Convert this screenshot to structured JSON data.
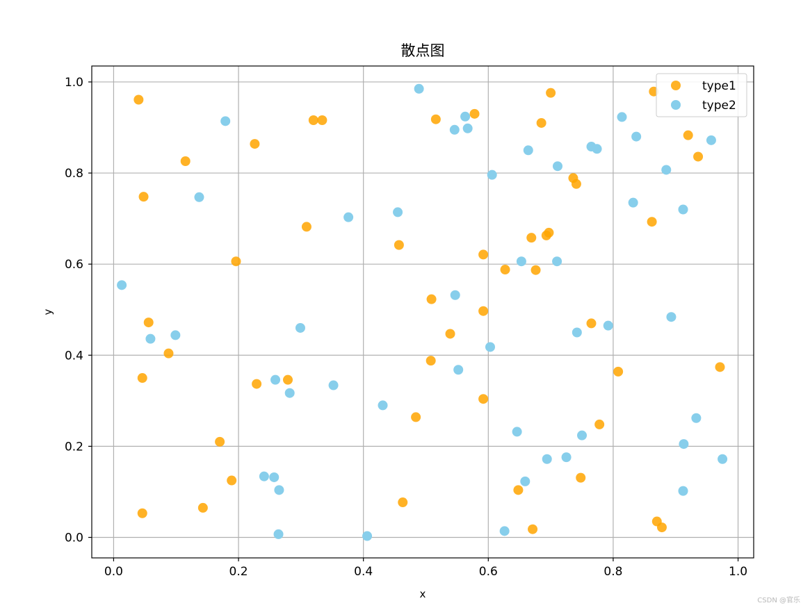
{
  "watermark": "CSDN @官乐",
  "chart_data": {
    "type": "scatter",
    "title": "散点图",
    "xlabel": "x",
    "ylabel": "y",
    "xlim": [
      -0.035,
      1.025
    ],
    "ylim": [
      -0.045,
      1.035
    ],
    "xticks": [
      0.0,
      0.2,
      0.4,
      0.6,
      0.8,
      1.0
    ],
    "yticks": [
      0.0,
      0.2,
      0.4,
      0.6,
      0.8,
      1.0
    ],
    "xtick_labels": [
      "0.0",
      "0.2",
      "0.4",
      "0.6",
      "0.8",
      "1.0"
    ],
    "ytick_labels": [
      "0.0",
      "0.2",
      "0.4",
      "0.6",
      "0.8",
      "1.0"
    ],
    "grid": true,
    "legend_position": "top-right",
    "series": [
      {
        "name": "type1",
        "color": "#FFA500",
        "points": [
          [
            0.04,
            0.961
          ],
          [
            0.048,
            0.748
          ],
          [
            0.056,
            0.472
          ],
          [
            0.088,
            0.404
          ],
          [
            0.046,
            0.35
          ],
          [
            0.046,
            0.053
          ],
          [
            0.115,
            0.826
          ],
          [
            0.143,
            0.065
          ],
          [
            0.17,
            0.21
          ],
          [
            0.189,
            0.125
          ],
          [
            0.196,
            0.606
          ],
          [
            0.226,
            0.864
          ],
          [
            0.229,
            0.337
          ],
          [
            0.279,
            0.346
          ],
          [
            0.309,
            0.682
          ],
          [
            0.32,
            0.916
          ],
          [
            0.334,
            0.916
          ],
          [
            0.457,
            0.642
          ],
          [
            0.463,
            0.077
          ],
          [
            0.484,
            0.264
          ],
          [
            0.509,
            0.523
          ],
          [
            0.508,
            0.388
          ],
          [
            0.516,
            0.918
          ],
          [
            0.539,
            0.447
          ],
          [
            0.578,
            0.93
          ],
          [
            0.592,
            0.621
          ],
          [
            0.592,
            0.497
          ],
          [
            0.592,
            0.304
          ],
          [
            0.627,
            0.588
          ],
          [
            0.648,
            0.104
          ],
          [
            0.669,
            0.658
          ],
          [
            0.671,
            0.018
          ],
          [
            0.676,
            0.587
          ],
          [
            0.685,
            0.91
          ],
          [
            0.697,
            0.669
          ],
          [
            0.693,
            0.663
          ],
          [
            0.7,
            0.976
          ],
          [
            0.736,
            0.789
          ],
          [
            0.741,
            0.776
          ],
          [
            0.765,
            0.47
          ],
          [
            0.748,
            0.131
          ],
          [
            0.778,
            0.248
          ],
          [
            0.808,
            0.364
          ],
          [
            0.862,
            0.693
          ],
          [
            0.865,
            0.979
          ],
          [
            0.92,
            0.883
          ],
          [
            0.936,
            0.836
          ],
          [
            0.87,
            0.035
          ],
          [
            0.878,
            0.022
          ],
          [
            0.971,
            0.374
          ]
        ]
      },
      {
        "name": "type2",
        "color": "#87CEEB",
        "points": [
          [
            0.013,
            0.554
          ],
          [
            0.059,
            0.436
          ],
          [
            0.099,
            0.444
          ],
          [
            0.137,
            0.747
          ],
          [
            0.179,
            0.914
          ],
          [
            0.241,
            0.134
          ],
          [
            0.257,
            0.132
          ],
          [
            0.259,
            0.346
          ],
          [
            0.265,
            0.104
          ],
          [
            0.264,
            0.007
          ],
          [
            0.282,
            0.317
          ],
          [
            0.299,
            0.46
          ],
          [
            0.352,
            0.334
          ],
          [
            0.376,
            0.703
          ],
          [
            0.406,
            0.003
          ],
          [
            0.431,
            0.29
          ],
          [
            0.455,
            0.714
          ],
          [
            0.489,
            0.985
          ],
          [
            0.546,
            0.895
          ],
          [
            0.547,
            0.532
          ],
          [
            0.552,
            0.368
          ],
          [
            0.563,
            0.924
          ],
          [
            0.567,
            0.898
          ],
          [
            0.603,
            0.418
          ],
          [
            0.606,
            0.796
          ],
          [
            0.626,
            0.014
          ],
          [
            0.646,
            0.232
          ],
          [
            0.653,
            0.606
          ],
          [
            0.659,
            0.123
          ],
          [
            0.664,
            0.85
          ],
          [
            0.694,
            0.172
          ],
          [
            0.71,
            0.606
          ],
          [
            0.711,
            0.815
          ],
          [
            0.725,
            0.176
          ],
          [
            0.742,
            0.45
          ],
          [
            0.75,
            0.224
          ],
          [
            0.765,
            0.858
          ],
          [
            0.774,
            0.853
          ],
          [
            0.792,
            0.465
          ],
          [
            0.814,
            0.923
          ],
          [
            0.832,
            0.735
          ],
          [
            0.837,
            0.88
          ],
          [
            0.885,
            0.807
          ],
          [
            0.893,
            0.484
          ],
          [
            0.912,
            0.72
          ],
          [
            0.913,
            0.205
          ],
          [
            0.912,
            0.102
          ],
          [
            0.933,
            0.262
          ],
          [
            0.957,
            0.872
          ],
          [
            0.975,
            0.172
          ]
        ]
      }
    ]
  }
}
